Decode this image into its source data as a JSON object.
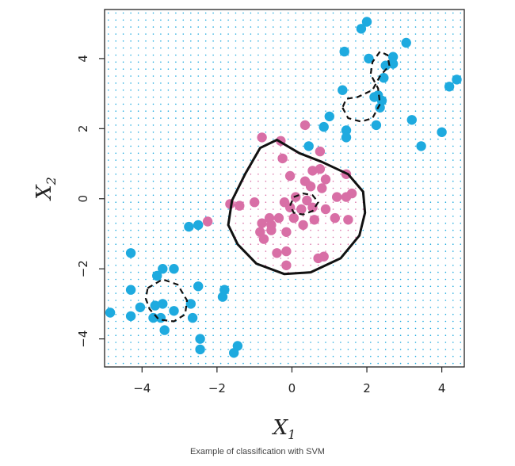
{
  "chart_data": {
    "type": "scatter",
    "title": "",
    "xlabel": "X",
    "xlabel_sub": "1",
    "ylabel": "X",
    "ylabel_sub": "2",
    "xlim": [
      -5,
      4.6
    ],
    "ylim": [
      -4.8,
      5.4
    ],
    "xticks": [
      -4,
      -2,
      0,
      2,
      4
    ],
    "yticks": [
      -4,
      -2,
      0,
      2,
      4
    ],
    "xtick_labels": [
      "−4",
      "−2",
      "0",
      "2",
      "4"
    ],
    "ytick_labels": [
      "−4",
      "−2",
      "0",
      "2",
      "4"
    ],
    "grid": false,
    "background_points": true,
    "colors": {
      "class_a": "#1eaadf",
      "class_b": "#d86fa6",
      "boundary": "#111111"
    },
    "series": [
      {
        "color": "#1eaadf",
        "points": [
          [
            2.0,
            5.05
          ],
          [
            1.85,
            4.85
          ],
          [
            1.4,
            4.2
          ],
          [
            2.05,
            4.0
          ],
          [
            2.5,
            3.8
          ],
          [
            2.7,
            4.05
          ],
          [
            2.7,
            3.85
          ],
          [
            3.05,
            4.45
          ],
          [
            4.4,
            3.4
          ],
          [
            4.2,
            3.2
          ],
          [
            2.45,
            3.45
          ],
          [
            1.35,
            3.1
          ],
          [
            2.3,
            2.95
          ],
          [
            2.2,
            2.9
          ],
          [
            2.4,
            2.8
          ],
          [
            2.35,
            2.6
          ],
          [
            1.0,
            2.35
          ],
          [
            0.85,
            2.05
          ],
          [
            1.45,
            1.95
          ],
          [
            1.45,
            1.75
          ],
          [
            2.25,
            2.1
          ],
          [
            3.2,
            2.25
          ],
          [
            4.0,
            1.9
          ],
          [
            3.45,
            1.5
          ],
          [
            0.45,
            1.5
          ],
          [
            -2.75,
            -0.8
          ],
          [
            -2.5,
            -0.75
          ],
          [
            -4.3,
            -1.55
          ],
          [
            -3.45,
            -2.0
          ],
          [
            -3.15,
            -2.0
          ],
          [
            -3.6,
            -2.2
          ],
          [
            -2.5,
            -2.5
          ],
          [
            -4.3,
            -2.6
          ],
          [
            -1.8,
            -2.6
          ],
          [
            -1.85,
            -2.8
          ],
          [
            -3.45,
            -3.0
          ],
          [
            -2.7,
            -3.0
          ],
          [
            -4.05,
            -3.1
          ],
          [
            -3.65,
            -3.05
          ],
          [
            -3.15,
            -3.2
          ],
          [
            -4.85,
            -3.25
          ],
          [
            -4.3,
            -3.35
          ],
          [
            -3.7,
            -3.4
          ],
          [
            -3.5,
            -3.4
          ],
          [
            -2.65,
            -3.4
          ],
          [
            -3.4,
            -3.75
          ],
          [
            -2.45,
            -4.0
          ],
          [
            -2.45,
            -4.3
          ],
          [
            -1.45,
            -4.2
          ],
          [
            -1.55,
            -4.4
          ]
        ]
      },
      {
        "color": "#d86fa6",
        "points": [
          [
            -1.0,
            -0.1
          ],
          [
            -1.4,
            -0.2
          ],
          [
            -1.65,
            -0.15
          ],
          [
            -2.25,
            -0.65
          ],
          [
            -0.8,
            1.75
          ],
          [
            -0.3,
            1.65
          ],
          [
            -0.25,
            1.15
          ],
          [
            0.35,
            2.1
          ],
          [
            -0.05,
            0.65
          ],
          [
            0.75,
            1.35
          ],
          [
            0.55,
            0.8
          ],
          [
            0.35,
            0.5
          ],
          [
            0.75,
            0.85
          ],
          [
            0.9,
            0.55
          ],
          [
            1.45,
            0.7
          ],
          [
            0.5,
            0.35
          ],
          [
            0.8,
            0.3
          ],
          [
            1.45,
            0.05
          ],
          [
            1.2,
            0.05
          ],
          [
            1.6,
            0.15
          ],
          [
            0.1,
            0.05
          ],
          [
            0.4,
            -0.05
          ],
          [
            -0.2,
            -0.1
          ],
          [
            -0.05,
            -0.25
          ],
          [
            0.25,
            -0.3
          ],
          [
            0.55,
            -0.25
          ],
          [
            0.9,
            -0.3
          ],
          [
            1.15,
            -0.55
          ],
          [
            1.5,
            -0.6
          ],
          [
            -0.35,
            -0.55
          ],
          [
            -0.6,
            -0.55
          ],
          [
            -0.8,
            -0.7
          ],
          [
            -0.55,
            -0.9
          ],
          [
            -0.85,
            -0.95
          ],
          [
            -0.75,
            -1.15
          ],
          [
            -0.15,
            -0.95
          ],
          [
            0.3,
            -0.75
          ],
          [
            0.6,
            -0.6
          ],
          [
            -0.4,
            -1.55
          ],
          [
            -0.15,
            -1.5
          ],
          [
            0.7,
            -1.7
          ],
          [
            0.85,
            -1.65
          ],
          [
            -0.15,
            -1.9
          ],
          [
            -0.55,
            -0.75
          ],
          [
            0.05,
            -0.55
          ]
        ]
      }
    ],
    "decision_boundary_solid": [
      [
        -0.4,
        1.68
      ],
      [
        0.2,
        1.3
      ],
      [
        0.8,
        1.05
      ],
      [
        1.5,
        0.7
      ],
      [
        1.9,
        0.2
      ],
      [
        1.95,
        -0.4
      ],
      [
        1.8,
        -1.05
      ],
      [
        1.3,
        -1.7
      ],
      [
        0.5,
        -2.1
      ],
      [
        -0.2,
        -2.15
      ],
      [
        -0.95,
        -1.85
      ],
      [
        -1.45,
        -1.3
      ],
      [
        -1.7,
        -0.75
      ],
      [
        -1.6,
        -0.05
      ],
      [
        -1.25,
        0.7
      ],
      [
        -0.85,
        1.45
      ],
      [
        -0.4,
        1.68
      ]
    ],
    "decision_boundary_dashed": [
      [
        [
          1.35,
          2.6
        ],
        [
          1.5,
          2.3
        ],
        [
          1.85,
          2.2
        ],
        [
          2.15,
          2.3
        ],
        [
          2.35,
          2.7
        ],
        [
          2.3,
          3.15
        ],
        [
          2.1,
          3.55
        ],
        [
          2.15,
          3.9
        ],
        [
          2.35,
          4.2
        ],
        [
          2.55,
          4.1
        ],
        [
          2.6,
          3.8
        ],
        [
          2.35,
          3.5
        ],
        [
          2.15,
          3.1
        ],
        [
          1.75,
          2.9
        ],
        [
          1.45,
          2.85
        ],
        [
          1.35,
          2.6
        ]
      ],
      [
        [
          -3.85,
          -2.55
        ],
        [
          -3.45,
          -2.3
        ],
        [
          -3.05,
          -2.45
        ],
        [
          -2.8,
          -2.9
        ],
        [
          -2.85,
          -3.3
        ],
        [
          -3.15,
          -3.5
        ],
        [
          -3.55,
          -3.45
        ],
        [
          -3.8,
          -3.15
        ],
        [
          -3.9,
          -2.85
        ],
        [
          -3.85,
          -2.55
        ]
      ],
      [
        [
          0.05,
          0.05
        ],
        [
          0.3,
          0.15
        ],
        [
          0.55,
          0.1
        ],
        [
          0.7,
          -0.1
        ],
        [
          0.55,
          -0.35
        ],
        [
          0.3,
          -0.45
        ],
        [
          0.05,
          -0.4
        ],
        [
          -0.05,
          -0.2
        ],
        [
          0.05,
          0.05
        ]
      ]
    ]
  },
  "caption": "Example of classification with SVM"
}
